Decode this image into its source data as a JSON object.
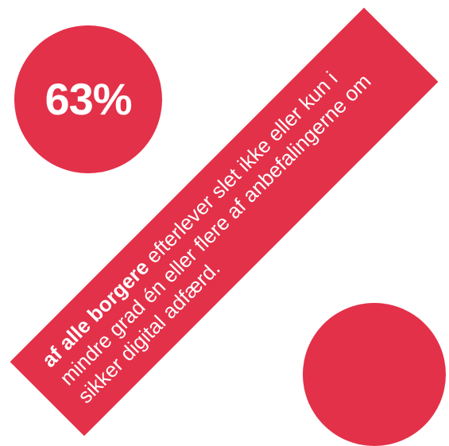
{
  "colors": {
    "accent": "#e33149",
    "text": "#ffffff",
    "background": "#ffffff"
  },
  "stat": {
    "value": "63%"
  },
  "statement": {
    "emphasis": "af alle borgere",
    "rest": " efterlever slet ikke eller kun i mindre grad én eller flere af anbefalingerne om sikker digital adfærd."
  }
}
